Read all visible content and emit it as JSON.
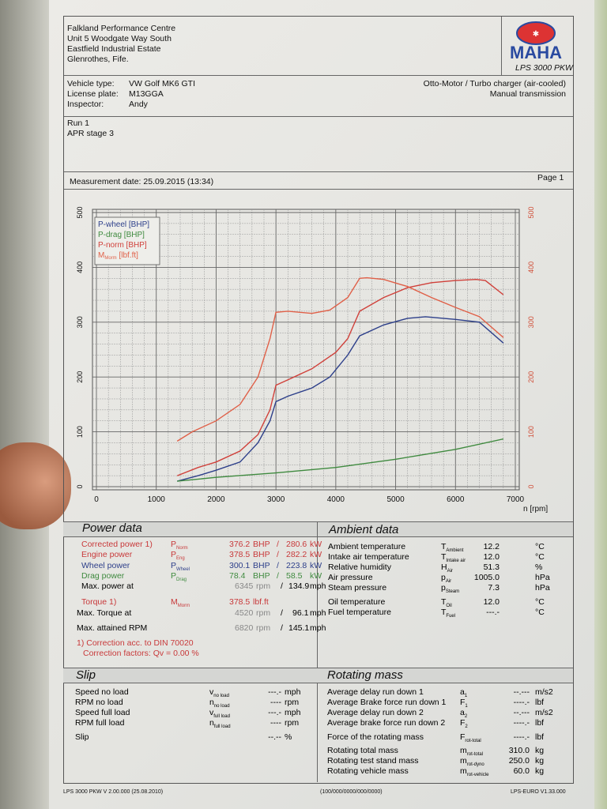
{
  "header": {
    "address": [
      "Falkland Performance Centre",
      "Unit 5 Woodgate Way South",
      "Eastfield Industrial Estate",
      "Glenrothes, Fife."
    ],
    "logo_text": "MAHA",
    "model": "LPS 3000 PKW"
  },
  "vehicle": {
    "labels": [
      "Vehicle type:",
      "License plate:",
      "Inspector:"
    ],
    "values": [
      "VW Golf MK6 GTI",
      "M13GGA",
      "Andy"
    ],
    "engine": "Otto-Motor / Turbo charger (air-cooled)",
    "transmission": "Manual transmission"
  },
  "run": {
    "lines": [
      "Run 1",
      "APR stage 3"
    ]
  },
  "measurement": {
    "date": "Measurement date: 25.09.2015 (13:34)",
    "page": "Page 1"
  },
  "chart_data": {
    "type": "line",
    "xlabel": "n [rpm]",
    "xlim": [
      0,
      7000
    ],
    "ylim_left": [
      0,
      500
    ],
    "ylim_right": [
      0,
      500
    ],
    "x_ticks": [
      "0",
      "1000",
      "2000",
      "3000",
      "4000",
      "5000",
      "6000",
      "7000"
    ],
    "y_ticks_left": [
      "0",
      "100",
      "200",
      "300",
      "400",
      "500"
    ],
    "y_ticks_right": [
      "0",
      "100",
      "200",
      "300",
      "400",
      "500"
    ],
    "grid": true,
    "legend_placement": "top-left",
    "series": [
      {
        "name": "P-wheel [BHP]",
        "color": "#2d3f8a",
        "axis": "left",
        "x": [
          1350,
          1700,
          2000,
          2400,
          2700,
          2900,
          3000,
          3200,
          3600,
          3900,
          4200,
          4400,
          4800,
          5200,
          5500,
          6000,
          6400,
          6800
        ],
        "y": [
          10,
          20,
          30,
          45,
          80,
          120,
          155,
          165,
          180,
          200,
          240,
          275,
          295,
          307,
          310,
          305,
          300,
          262
        ]
      },
      {
        "name": "P-drag [BHP]",
        "color": "#3f8a3f",
        "axis": "left",
        "x": [
          1350,
          2000,
          3000,
          4000,
          5000,
          6000,
          6800
        ],
        "y": [
          10,
          17,
          25,
          35,
          50,
          68,
          87
        ]
      },
      {
        "name": "P-norm [BHP]",
        "color": "#d0403a",
        "axis": "left",
        "x": [
          1350,
          1700,
          2000,
          2400,
          2700,
          2900,
          3000,
          3200,
          3600,
          4000,
          4200,
          4400,
          4800,
          5200,
          5600,
          6000,
          6345,
          6500,
          6800
        ],
        "y": [
          20,
          35,
          45,
          65,
          95,
          140,
          185,
          195,
          215,
          245,
          270,
          320,
          345,
          363,
          372,
          376,
          378,
          376,
          350
        ]
      },
      {
        "name": "M",
        "name_sub": "Morm",
        "name_suffix": "[lbf.ft]",
        "color": "#e06048",
        "axis": "right",
        "x": [
          1350,
          1600,
          2000,
          2400,
          2700,
          2900,
          3000,
          3200,
          3600,
          3900,
          4200,
          4400,
          4520,
          4800,
          5200,
          5600,
          6000,
          6400,
          6800
        ],
        "y": [
          83,
          100,
          120,
          150,
          200,
          270,
          318,
          320,
          316,
          322,
          345,
          380,
          381,
          378,
          365,
          345,
          327,
          310,
          272
        ]
      }
    ]
  },
  "power": {
    "title": "Power data",
    "rows": [
      {
        "label": "Corrected power 1)",
        "sym": "P",
        "sub": "Norm",
        "v1": "376.2",
        "u1": "BHP",
        "v2": "280.6",
        "u2": "kW",
        "cls": "red"
      },
      {
        "label": "Engine power",
        "sym": "P",
        "sub": "Eng",
        "v1": "378.5",
        "u1": "BHP",
        "v2": "282.2",
        "u2": "kW",
        "cls": "red"
      },
      {
        "label": "Wheel power",
        "sym": "P",
        "sub": "Wheel",
        "v1": "300.1",
        "u1": "BHP",
        "v2": "223.8",
        "u2": "kW",
        "cls": "blue"
      },
      {
        "label": "Drag power",
        "sym": "P",
        "sub": "Drag",
        "v1": "78.4",
        "u1": "BHP",
        "v2": "58.5",
        "u2": "kW",
        "cls": "green"
      }
    ],
    "max_power": {
      "label": "Max. power at",
      "rpm": "6345",
      "rpm_unit": "rpm",
      "speed": "134.9",
      "speed_unit": "mph"
    },
    "torque": {
      "label": "Torque 1)",
      "sym": "M",
      "sub": "Morm",
      "value": "378.5",
      "unit": "lbf.ft"
    },
    "max_torque": {
      "label": "Max. Torque at",
      "rpm": "4520",
      "rpm_unit": "rpm",
      "speed": "96.1",
      "speed_unit": "mph"
    },
    "max_rpm": {
      "label": "Max. attained RPM",
      "rpm": "6820",
      "rpm_unit": "rpm",
      "speed": "145.1",
      "speed_unit": "mph"
    },
    "note1": "1) Correction acc. to DIN 70020",
    "note2": "Correction factors: Qv =  0.00 %"
  },
  "ambient": {
    "title": "Ambient data",
    "rows": [
      {
        "label": "Ambient temperature",
        "sym": "T",
        "sub": "Ambient",
        "value": "12.2",
        "unit": "°C"
      },
      {
        "label": "Intake air temperature",
        "sym": "T",
        "sub": "Intake air",
        "value": "12.0",
        "unit": "°C"
      },
      {
        "label": "Relative humidity",
        "sym": "H",
        "sub": "Air",
        "value": "51.3",
        "unit": "%"
      },
      {
        "label": "Air pressure",
        "sym": "p",
        "sub": "Air",
        "value": "1005.0",
        "unit": "hPa"
      },
      {
        "label": "Steam pressure",
        "sym": "p",
        "sub": "Steam",
        "value": "7.3",
        "unit": "hPa"
      },
      {
        "label": "Oil temperature",
        "sym": "T",
        "sub": "Oil",
        "value": "12.0",
        "unit": "°C"
      },
      {
        "label": "Fuel temperature",
        "sym": "T",
        "sub": "Fuel",
        "value": "---.-",
        "unit": "°C"
      }
    ]
  },
  "slip": {
    "title": "Slip",
    "rows": [
      {
        "label": "Speed no load",
        "sym": "v",
        "sub": "no load",
        "value": "---.-",
        "unit": "mph"
      },
      {
        "label": "RPM no load",
        "sym": "n",
        "sub": "no load",
        "value": "----",
        "unit": "rpm"
      },
      {
        "label": "Speed full load",
        "sym": "v",
        "sub": "full load",
        "value": "---.-",
        "unit": "mph"
      },
      {
        "label": "RPM full load",
        "sym": "n",
        "sub": "full load",
        "value": "----",
        "unit": "rpm"
      },
      {
        "label": "Slip",
        "sym": "",
        "sub": "",
        "value": "--.--",
        "unit": "%"
      }
    ]
  },
  "rotating": {
    "title": "Rotating mass",
    "rows": [
      {
        "label": "Average delay run down 1",
        "sym": "a",
        "sub": "1",
        "value": "--.---",
        "unit": "m/s2"
      },
      {
        "label": "Average Brake force run down 1",
        "sym": "F",
        "sub": "1",
        "value": "----.-",
        "unit": "lbf"
      },
      {
        "label": "Average delay run down 2",
        "sym": "a",
        "sub": "2",
        "value": "--.---",
        "unit": "m/s2"
      },
      {
        "label": "Average brake force run down 2",
        "sym": "F",
        "sub": "2",
        "value": "----.-",
        "unit": "lbf"
      },
      {
        "label": "Force of the rotating mass",
        "sym": "F",
        "sub": "rot-total",
        "value": "----.-",
        "unit": "lbf"
      },
      {
        "label": "Rotating total mass",
        "sym": "m",
        "sub": "rot-total",
        "value": "310.0",
        "unit": "kg"
      },
      {
        "label": "Rotating test stand mass",
        "sym": "m",
        "sub": "rot-dyno",
        "value": "250.0",
        "unit": "kg"
      },
      {
        "label": "Rotating vehicle mass",
        "sym": "m",
        "sub": "rot-vehicle",
        "value": "60.0",
        "unit": "kg"
      }
    ]
  },
  "footer": {
    "left": "LPS 3000 PKW V 2.00.000 (25.08.2010)",
    "center": "(100/000/0000/000/0000)",
    "right": "LPS-EURO V1.33.000"
  }
}
